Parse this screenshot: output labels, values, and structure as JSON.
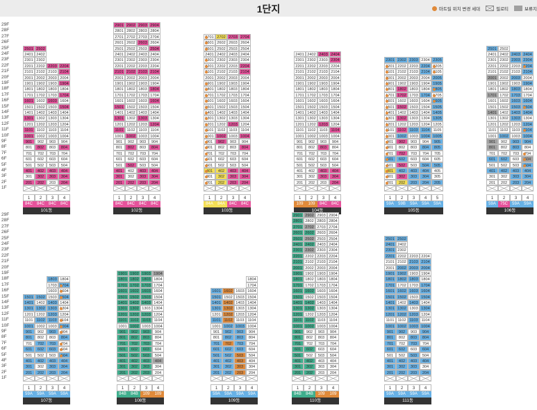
{
  "header": {
    "title": "1단지",
    "legend": {
      "move": "마트릴 위치 변경 세대",
      "pilotis": "필로티",
      "reserved": "보류지"
    }
  },
  "colors": {
    "pink": "#e6529b",
    "yellow": "#f3de55",
    "blue": "#67b1e6",
    "green": "#3fae8d",
    "gray": "#a3a3a3",
    "orange": "#e08a3a"
  },
  "floor_labels_top": [
    "29F",
    "28F",
    "27F",
    "26F",
    "25F",
    "24F",
    "23F",
    "22F",
    "21F",
    "20F",
    "19F",
    "18F",
    "17F",
    "16F",
    "15F",
    "14F",
    "13F",
    "12F",
    "11F",
    "10F",
    "9F",
    "8F",
    "7F",
    "6F",
    "5F",
    "4F",
    "3F",
    "2F",
    "1F"
  ],
  "floor_labels_bottom": [
    "29F",
    "28F",
    "27F",
    "26F",
    "25F",
    "24F",
    "23F",
    "22F",
    "21F",
    "20F",
    "19F",
    "18F",
    "17F",
    "16F",
    "15F",
    "14F",
    "13F",
    "12F",
    "11F",
    "10F",
    "9F",
    "8F",
    "7F",
    "6F",
    "5F",
    "4F",
    "3F",
    "2F",
    "1F"
  ],
  "buildings": [
    {
      "name": "101동",
      "lines": [
        "1",
        "2",
        "3",
        "4"
      ],
      "types": [
        "84C",
        "84C",
        "84C",
        "84C"
      ],
      "typecolors": [
        "pink",
        "pink",
        "pink",
        "pink"
      ],
      "floors": [
        25,
        25,
        22,
        22
      ],
      "pilotis": [
        0,
        0,
        0,
        0
      ],
      "colored": {
        "pink": [
          "2501",
          "2502",
          "2203",
          "2204",
          "2104",
          "1904",
          "1704",
          "1601",
          "1603",
          "1504",
          "1301",
          "1101",
          "1001",
          "901",
          "802",
          "804",
          "401",
          "402",
          "403",
          "404",
          "302",
          "303",
          "304",
          "201",
          "202",
          "204"
        ]
      },
      "dots": [],
      "grayc": []
    },
    {
      "name": "102동",
      "lines": [
        "1",
        "2",
        "3",
        "4"
      ],
      "types": [
        "84C",
        "84C",
        "84C",
        "84C"
      ],
      "typecolors": [
        "pink",
        "pink",
        "pink",
        "pink"
      ],
      "floors": [
        29,
        29,
        29,
        29
      ],
      "pilotis": [
        1,
        1,
        1,
        1
      ],
      "colored": {
        "pink": [
          "2901",
          "2902",
          "2903",
          "2904",
          "2603",
          "2504",
          "2101",
          "2102",
          "2103",
          "2104",
          "1804",
          "1604",
          "1501",
          "1301",
          "1303",
          "1204",
          "1101",
          "1002",
          "802",
          "804",
          "502",
          "401",
          "403",
          "404",
          "301",
          "303",
          "304",
          "201",
          "202",
          "203",
          "204"
        ]
      },
      "dots": [],
      "grayc": []
    },
    {
      "name": "103동",
      "lines": [
        "1",
        "2",
        "3",
        "4"
      ],
      "types": [
        "84A",
        "84A",
        "84C",
        "84C"
      ],
      "typecolors": [
        "yellow",
        "yellow",
        "pink",
        "pink"
      ],
      "floors": [
        27,
        27,
        27,
        27
      ],
      "pilotis": [
        1,
        1,
        1,
        1
      ],
      "colored": {
        "yellow": [
          "2702",
          "401",
          "402",
          "302",
          "202"
        ],
        "pink": [
          "2703",
          "2704",
          "2204",
          "2104",
          "1203",
          "1002",
          "1004",
          "902",
          "804",
          "403",
          "404",
          "303",
          "304",
          "203",
          "204"
        ]
      },
      "dots": [
        "2701",
        "2601",
        "2501",
        "2301",
        "2201",
        "2101",
        "1901",
        "1801",
        "1701",
        "1601",
        "1501",
        "1401",
        "1301",
        "1201",
        "1101",
        "1001",
        "901",
        "801",
        "701",
        "601",
        "501",
        "401",
        "301",
        "201"
      ],
      "grayc": []
    },
    {
      "name": "104동",
      "lines": [
        "1",
        "2",
        "3",
        "4"
      ],
      "types": [
        "109",
        "109",
        "84C",
        "84C"
      ],
      "typecolors": [
        "orange",
        "orange",
        "pink",
        "pink"
      ],
      "floors": [
        24,
        24,
        24,
        24
      ],
      "pilotis": [
        1,
        1,
        1,
        1
      ],
      "colored": {
        "pink": [
          "2403",
          "2404",
          "2304",
          "1203",
          "1104",
          "803",
          "403",
          "404",
          "303",
          "304",
          "204"
        ]
      },
      "dots": [],
      "grayc": []
    },
    {
      "name": "105동",
      "lines": [
        "1",
        "2",
        "3",
        "4",
        "5"
      ],
      "types": [
        "59A",
        "59B",
        "59A",
        "59A",
        "59A"
      ],
      "typecolors": [
        "blue",
        "blue",
        "blue",
        "blue",
        "blue"
      ],
      "floors": [
        23,
        23,
        23,
        23,
        23
      ],
      "pilotis": [
        1,
        1,
        1,
        1,
        1
      ],
      "colored": {
        "blue": [
          "2301",
          "2302",
          "2303",
          "2305",
          "2204",
          "2104",
          "2005",
          "1905",
          "1805",
          "1704",
          "1605",
          "1505",
          "1405",
          "1305",
          "1103",
          "1104",
          "1002",
          "1004",
          "1005",
          "905",
          "804",
          "805",
          "601",
          "602",
          "504",
          "505",
          "401",
          "402",
          "403",
          "404",
          "302",
          "303",
          "304",
          "203",
          "204",
          "205"
        ],
        "pink": [
          "1802",
          "1702",
          "1502",
          "1302",
          "1102",
          "902",
          "702",
          "502",
          "302"
        ],
        "yellow": [
          "401",
          "202"
        ]
      },
      "dots": [
        "2201",
        "2101",
        "2001",
        "1901",
        "1801",
        "1701",
        "1601",
        "1501",
        "1401",
        "1301",
        "1201",
        "1101",
        "1001",
        "901",
        "801",
        "701",
        "601",
        "501",
        "401",
        "301",
        "201",
        "1106",
        "2205",
        "2105",
        "1805",
        "1705",
        "1605"
      ],
      "grayc": []
    },
    {
      "name": "106동",
      "lines": [
        "1",
        "2",
        "3",
        "4"
      ],
      "types": [
        "59A",
        "75C",
        "59A",
        "59A"
      ],
      "typecolors": [
        "blue",
        "pink",
        "blue",
        "blue"
      ],
      "floors": [
        25,
        25,
        24,
        24
      ],
      "pilotis": [
        1,
        1,
        1,
        1
      ],
      "colored": {
        "blue": [
          "2501",
          "2403",
          "2404",
          "2303",
          "2304",
          "2204",
          "2104",
          "2003",
          "1904",
          "1803",
          "1703",
          "1603",
          "1604",
          "1503",
          "1504",
          "1403",
          "1404",
          "1303",
          "1204",
          "1104",
          "1002",
          "1004",
          "903",
          "904",
          "801",
          "803",
          "601",
          "602",
          "504",
          "401",
          "402",
          "403",
          "404",
          "303",
          "304",
          "203",
          "204"
        ],
        "pink": []
      },
      "dots": [
        "2204",
        "1504",
        "1104",
        "704",
        "604",
        "504"
      ],
      "grayc": [
        "2001",
        "1701",
        "1401",
        "901",
        "801",
        "604"
      ]
    },
    {
      "name": "107동",
      "lines": [
        "1",
        "2",
        "3",
        "4"
      ],
      "types": [
        "59A",
        "59A",
        "59A",
        "59A"
      ],
      "typecolors": [
        "blue",
        "blue",
        "blue",
        "blue"
      ],
      "floors": [
        15,
        15,
        18,
        18
      ],
      "pilotis": [
        0,
        0,
        0,
        0
      ],
      "colored": {
        "blue": [
          "1803",
          "1704",
          "1504",
          "1501",
          "1502",
          "1401",
          "1403",
          "1301",
          "1302",
          "1303",
          "1203",
          "1103",
          "1102",
          "1001",
          "1004",
          "901",
          "903",
          "801",
          "804",
          "702",
          "703",
          "601",
          "602",
          "603",
          "504",
          "401",
          "402",
          "403",
          "404",
          "301",
          "303",
          "304",
          "201",
          "202",
          "203",
          "204"
        ]
      },
      "dots": [
        "1704",
        "1604",
        "1504",
        "1304",
        "1104",
        "1004",
        "904",
        "704",
        "604",
        "504"
      ],
      "grayc": []
    },
    {
      "name": "108동",
      "lines": [
        "1",
        "2",
        "3",
        "4"
      ],
      "types": [
        "84B",
        "84B",
        "109",
        "109"
      ],
      "typecolors": [
        "green",
        "green",
        "orange",
        "orange"
      ],
      "floors": [
        19,
        19,
        19,
        19
      ],
      "pilotis": [
        0,
        0,
        0,
        0
      ],
      "colored": {
        "green": [
          "1901",
          "1902",
          "1903",
          "1801",
          "1802",
          "1803",
          "1701",
          "1702",
          "1703",
          "1601",
          "1602",
          "1603",
          "1501",
          "1502",
          "1503",
          "1401",
          "1402",
          "1403",
          "1301",
          "1302",
          "1201",
          "1202",
          "1203",
          "1101",
          "1102",
          "1103",
          "1002",
          "901",
          "902",
          "903",
          "801",
          "802",
          "803",
          "701",
          "702",
          "703",
          "601",
          "602",
          "603",
          "501",
          "502",
          "503",
          "401",
          "402",
          "403",
          "301",
          "302",
          "303",
          "201",
          "202",
          "203"
        ]
      },
      "dots": [],
      "grayc": [
        "1904",
        "404"
      ]
    },
    {
      "name": "109동",
      "lines": [
        "1",
        "2",
        "3",
        "4"
      ],
      "types": [
        "59A",
        "59A",
        "59A",
        "59A"
      ],
      "typecolors": [
        "blue",
        "blue",
        "blue",
        "blue"
      ],
      "floors": [
        16,
        16,
        16,
        18
      ],
      "pilotis": [
        0,
        0,
        0,
        0
      ],
      "colored": {
        "blue": [
          "1601",
          "1501",
          "1401",
          "1301",
          "1101",
          "1002",
          "1003",
          "902",
          "903",
          "802",
          "803",
          "701",
          "703",
          "601",
          "602",
          "603",
          "501",
          "502",
          "503",
          "401",
          "402",
          "403",
          "301",
          "302",
          "303",
          "201",
          "202",
          "203"
        ],
        "orange": [
          "1602",
          "1402",
          "1302",
          "1202",
          "1102",
          "702",
          "503",
          "403",
          "303",
          "203"
        ]
      },
      "dots": [],
      "grayc": []
    },
    {
      "name": "110동",
      "lines": [
        "1",
        "2",
        "3",
        "4"
      ],
      "types": [
        "84B",
        "84B",
        "109",
        "109"
      ],
      "typecolors": [
        "green",
        "green",
        "orange",
        "orange"
      ],
      "floors": [
        29,
        29,
        29,
        29
      ],
      "pilotis": [
        1,
        1,
        1,
        1
      ],
      "colored": {
        "green": [
          "2901",
          "2801",
          "2701",
          "2601",
          "2602",
          "2501",
          "2401",
          "2402",
          "2301",
          "2201",
          "2101",
          "2001",
          "1901",
          "1801",
          "1701",
          "1601",
          "1602",
          "1501",
          "1401",
          "1402",
          "1301",
          "1302",
          "1201",
          "1101",
          "1102",
          "1001",
          "1002",
          "901",
          "801",
          "701",
          "601",
          "602",
          "501",
          "401",
          "402",
          "301",
          "302",
          "201",
          "202"
        ],
        "gray": [
          "2902",
          "2702",
          "2502",
          "2302"
        ]
      },
      "dots": [],
      "grayc": []
    },
    {
      "name": "111동",
      "lines": [
        "1",
        "2",
        "3",
        "4"
      ],
      "types": [
        "59A",
        "59A",
        "59A",
        "59A"
      ],
      "typecolors": [
        "blue",
        "blue",
        "blue",
        "blue"
      ],
      "floors": [
        25,
        25,
        22,
        22
      ],
      "pilotis": [
        1,
        1,
        1,
        1
      ],
      "colored": {
        "blue": [
          "2501",
          "2502",
          "2401",
          "2301",
          "2201",
          "2103",
          "2104",
          "2002",
          "2003",
          "2004",
          "1901",
          "1902",
          "1801",
          "1802",
          "1803",
          "1701",
          "1704",
          "1601",
          "1602",
          "1603",
          "1604",
          "1501",
          "1502",
          "1504",
          "1401",
          "1403",
          "1301",
          "1302",
          "1304",
          "1201",
          "1202",
          "1203",
          "1103",
          "1001",
          "1002",
          "1003",
          "1004",
          "901",
          "902",
          "904",
          "801",
          "803",
          "804",
          "701",
          "703",
          "601",
          "602",
          "604",
          "503",
          "401",
          "402",
          "403",
          "404",
          "301",
          "302",
          "303",
          "201",
          "202",
          "203",
          "204"
        ]
      },
      "dots": [],
      "grayc": []
    }
  ]
}
